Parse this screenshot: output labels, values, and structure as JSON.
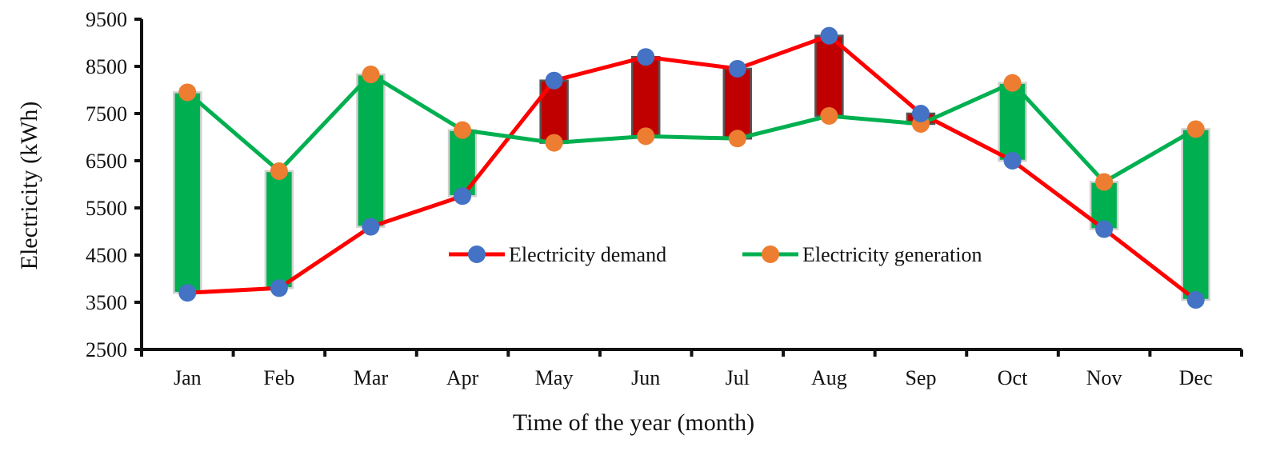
{
  "chart_data": {
    "type": "line",
    "title": "",
    "xlabel": "Time of the year (month)",
    "ylabel": "Electricity (kWh)",
    "categories": [
      "Jan",
      "Feb",
      "Mar",
      "Apr",
      "May",
      "Jun",
      "Jul",
      "Aug",
      "Sep",
      "Oct",
      "Nov",
      "Dec"
    ],
    "ylim": [
      2500,
      9500
    ],
    "yticks": [
      2500,
      3500,
      4500,
      5500,
      6500,
      7500,
      8500,
      9500
    ],
    "grid": false,
    "legend_position": "center",
    "series": [
      {
        "name": "Electricity demand",
        "line_color": "#ff0000",
        "marker_color": "#4472c4",
        "values": [
          3700,
          3800,
          5100,
          5750,
          8200,
          8700,
          8450,
          9150,
          7500,
          6500,
          5050,
          3550
        ]
      },
      {
        "name": "Electricity generation",
        "line_color": "#00b050",
        "marker_color": "#ed7d31",
        "values": [
          7950,
          6280,
          8330,
          7150,
          6880,
          7020,
          6970,
          7450,
          7280,
          8150,
          6050,
          7170
        ]
      }
    ],
    "bar_colors": {
      "surplus": "#00b050",
      "deficit": "#c00000"
    }
  }
}
